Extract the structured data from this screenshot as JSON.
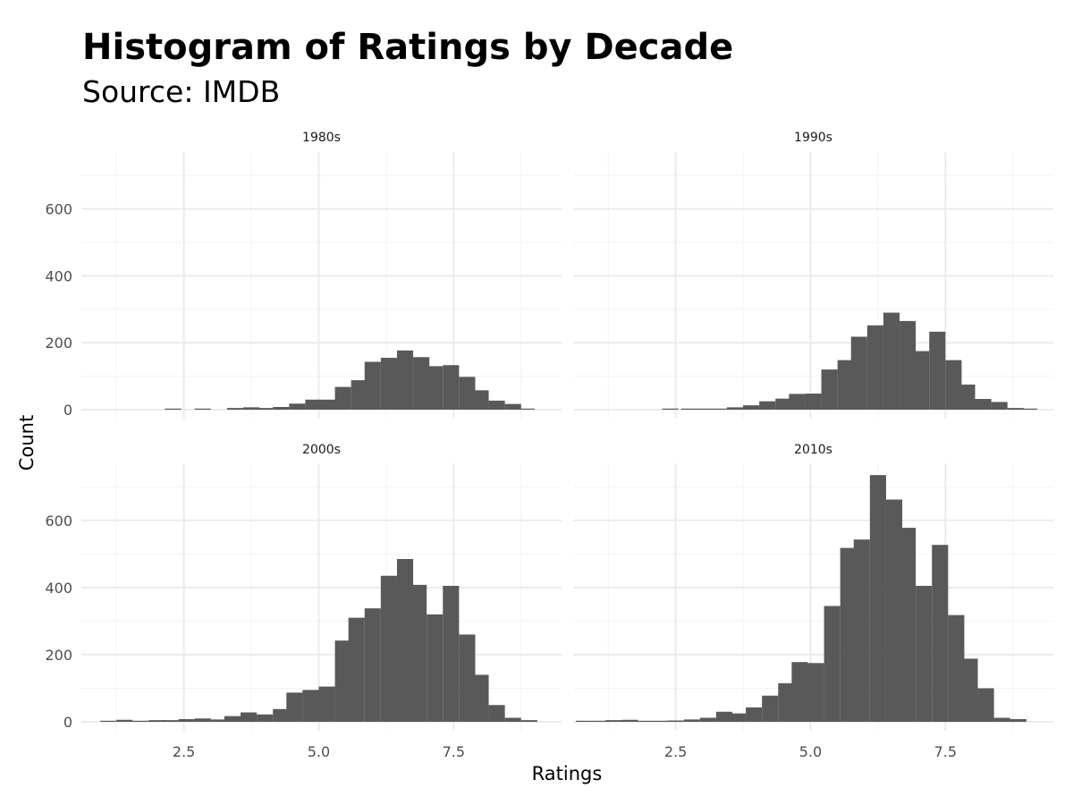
{
  "chart_data": {
    "type": "bar",
    "title": "Histogram of Ratings by Decade",
    "subtitle": "Source: IMDB",
    "xlabel": "Ratings",
    "ylabel": "Count",
    "xlim": [
      0.6,
      9.5
    ],
    "ylim": [
      0,
      770
    ],
    "xticks": [
      "2.5",
      "5.0",
      "7.5"
    ],
    "yticks": [
      "0",
      "200",
      "400",
      "600"
    ],
    "grid": true,
    "facets": [
      {
        "label": "1980s",
        "bins": [
          {
            "x": 2.3,
            "count": 3
          },
          {
            "x": 2.4,
            "count": 0
          },
          {
            "x": 2.55,
            "count": 0
          },
          {
            "x": 2.85,
            "count": 2
          },
          {
            "x": 3.15,
            "count": 0
          },
          {
            "x": 3.45,
            "count": 5
          },
          {
            "x": 3.75,
            "count": 7
          },
          {
            "x": 4.0,
            "count": 5
          },
          {
            "x": 4.3,
            "count": 8
          },
          {
            "x": 4.6,
            "count": 18
          },
          {
            "x": 4.9,
            "count": 30
          },
          {
            "x": 5.2,
            "count": 30
          },
          {
            "x": 5.45,
            "count": 68
          },
          {
            "x": 5.75,
            "count": 88
          },
          {
            "x": 6.0,
            "count": 143
          },
          {
            "x": 6.3,
            "count": 155
          },
          {
            "x": 6.6,
            "count": 177
          },
          {
            "x": 6.9,
            "count": 157
          },
          {
            "x": 7.15,
            "count": 130
          },
          {
            "x": 7.45,
            "count": 133
          },
          {
            "x": 7.75,
            "count": 98
          },
          {
            "x": 8.0,
            "count": 58
          },
          {
            "x": 8.3,
            "count": 27
          },
          {
            "x": 8.6,
            "count": 17
          },
          {
            "x": 8.85,
            "count": 2
          }
        ]
      },
      {
        "label": "1990s",
        "bins": [
          {
            "x": 2.4,
            "count": 1
          },
          {
            "x": 2.75,
            "count": 3
          },
          {
            "x": 3.05,
            "count": 1
          },
          {
            "x": 3.35,
            "count": 2
          },
          {
            "x": 3.6,
            "count": 7
          },
          {
            "x": 3.9,
            "count": 13
          },
          {
            "x": 4.2,
            "count": 25
          },
          {
            "x": 4.5,
            "count": 33
          },
          {
            "x": 4.75,
            "count": 47
          },
          {
            "x": 5.05,
            "count": 48
          },
          {
            "x": 5.35,
            "count": 120
          },
          {
            "x": 5.65,
            "count": 148
          },
          {
            "x": 5.9,
            "count": 218
          },
          {
            "x": 6.2,
            "count": 252
          },
          {
            "x": 6.5,
            "count": 290
          },
          {
            "x": 6.8,
            "count": 265
          },
          {
            "x": 7.05,
            "count": 175
          },
          {
            "x": 7.35,
            "count": 233
          },
          {
            "x": 7.65,
            "count": 148
          },
          {
            "x": 7.9,
            "count": 75
          },
          {
            "x": 8.2,
            "count": 32
          },
          {
            "x": 8.5,
            "count": 23
          },
          {
            "x": 8.8,
            "count": 5
          },
          {
            "x": 9.05,
            "count": 2
          }
        ]
      },
      {
        "label": "2000s",
        "bins": [
          {
            "x": 1.1,
            "count": 2
          },
          {
            "x": 1.4,
            "count": 6
          },
          {
            "x": 1.7,
            "count": 2
          },
          {
            "x": 2.0,
            "count": 5
          },
          {
            "x": 2.25,
            "count": 5
          },
          {
            "x": 2.55,
            "count": 8
          },
          {
            "x": 2.85,
            "count": 10
          },
          {
            "x": 3.15,
            "count": 7
          },
          {
            "x": 3.4,
            "count": 17
          },
          {
            "x": 3.7,
            "count": 28
          },
          {
            "x": 4.0,
            "count": 22
          },
          {
            "x": 4.3,
            "count": 38
          },
          {
            "x": 4.55,
            "count": 87
          },
          {
            "x": 4.85,
            "count": 95
          },
          {
            "x": 5.15,
            "count": 105
          },
          {
            "x": 5.45,
            "count": 242
          },
          {
            "x": 5.7,
            "count": 310
          },
          {
            "x": 6.0,
            "count": 338
          },
          {
            "x": 6.3,
            "count": 435
          },
          {
            "x": 6.6,
            "count": 485
          },
          {
            "x": 6.85,
            "count": 408
          },
          {
            "x": 7.15,
            "count": 320
          },
          {
            "x": 7.45,
            "count": 405
          },
          {
            "x": 7.75,
            "count": 260
          },
          {
            "x": 8.0,
            "count": 140
          },
          {
            "x": 8.3,
            "count": 50
          },
          {
            "x": 8.6,
            "count": 12
          },
          {
            "x": 8.9,
            "count": 5
          }
        ]
      },
      {
        "label": "2010s",
        "bins": [
          {
            "x": 0.8,
            "count": 2
          },
          {
            "x": 1.1,
            "count": 2
          },
          {
            "x": 1.35,
            "count": 5
          },
          {
            "x": 1.65,
            "count": 6
          },
          {
            "x": 1.95,
            "count": 2
          },
          {
            "x": 2.25,
            "count": 3
          },
          {
            "x": 2.5,
            "count": 4
          },
          {
            "x": 2.8,
            "count": 7
          },
          {
            "x": 3.1,
            "count": 12
          },
          {
            "x": 3.4,
            "count": 30
          },
          {
            "x": 3.65,
            "count": 25
          },
          {
            "x": 3.95,
            "count": 43
          },
          {
            "x": 4.25,
            "count": 78
          },
          {
            "x": 4.55,
            "count": 115
          },
          {
            "x": 4.8,
            "count": 178
          },
          {
            "x": 5.1,
            "count": 175
          },
          {
            "x": 5.4,
            "count": 345
          },
          {
            "x": 5.7,
            "count": 518
          },
          {
            "x": 5.95,
            "count": 543
          },
          {
            "x": 6.25,
            "count": 735
          },
          {
            "x": 6.55,
            "count": 662
          },
          {
            "x": 6.8,
            "count": 578
          },
          {
            "x": 7.1,
            "count": 405
          },
          {
            "x": 7.4,
            "count": 527
          },
          {
            "x": 7.7,
            "count": 318
          },
          {
            "x": 7.95,
            "count": 188
          },
          {
            "x": 8.25,
            "count": 100
          },
          {
            "x": 8.55,
            "count": 12
          },
          {
            "x": 8.85,
            "count": 8
          }
        ]
      }
    ],
    "bar_color": "#595959",
    "grid_major_color": "#ebebeb",
    "grid_minor_color": "#f2f2f2"
  }
}
